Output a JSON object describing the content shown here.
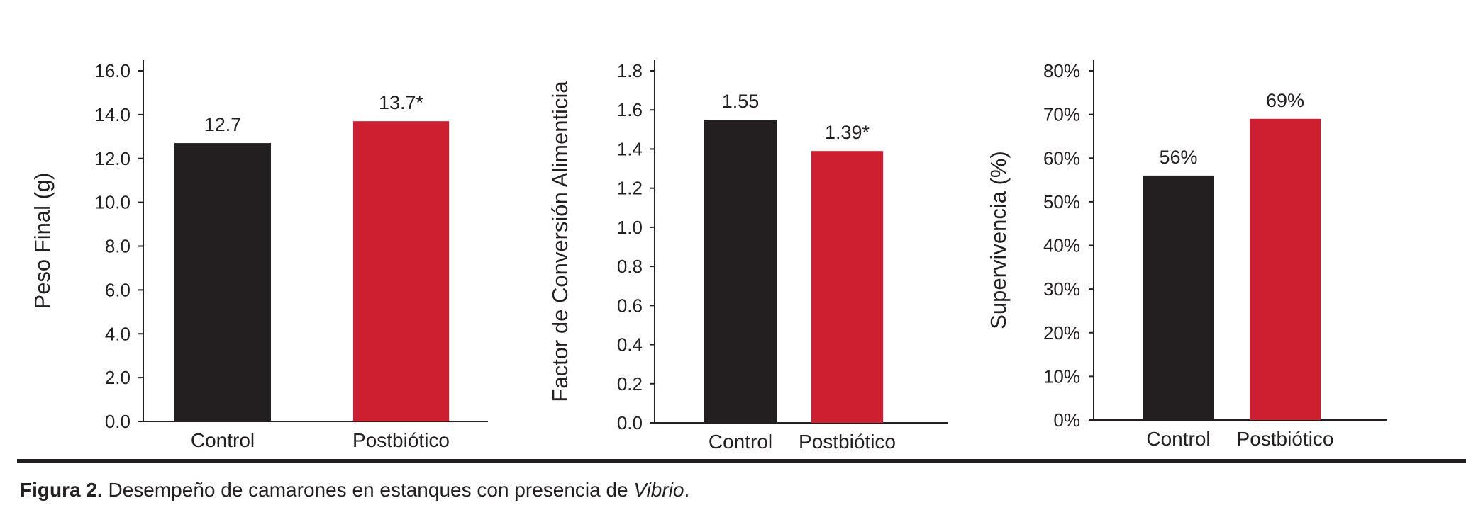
{
  "colors": {
    "control": "#231f20",
    "postbiotico": "#cc1f30",
    "axis": "#231f20"
  },
  "chart_data": [
    {
      "type": "bar",
      "categories": [
        "Control",
        "Postbiótico"
      ],
      "values": [
        12.7,
        13.7
      ],
      "data_labels": [
        "12.7",
        "13.7*"
      ],
      "ylabel": "Peso Final (g)",
      "ylim": [
        0,
        16
      ],
      "yticks": [
        0,
        2,
        4,
        6,
        8,
        10,
        12,
        14,
        16
      ],
      "ytick_labels": [
        "0.0",
        "2.0",
        "4.0",
        "6.0",
        "8.0",
        "10.0",
        "12.0",
        "14.0",
        "16.0"
      ],
      "grid": false
    },
    {
      "type": "bar",
      "categories": [
        "Control",
        "Postbiótico"
      ],
      "values": [
        1.55,
        1.39
      ],
      "data_labels": [
        "1.55",
        "1.39*"
      ],
      "ylabel": "Factor de Conversión Alimenticia",
      "ylim": [
        0,
        1.8
      ],
      "yticks": [
        0,
        0.2,
        0.4,
        0.6,
        0.8,
        1.0,
        1.2,
        1.4,
        1.6,
        1.8
      ],
      "ytick_labels": [
        "0.0",
        "0.2",
        "0.4",
        "0.6",
        "0.8",
        "1.0",
        "1.2",
        "1.4",
        "1.6",
        "1.8"
      ],
      "grid": false
    },
    {
      "type": "bar",
      "categories": [
        "Control",
        "Postbiótico"
      ],
      "values": [
        56,
        69
      ],
      "data_labels": [
        "56%",
        "69%"
      ],
      "ylabel": "Supervivencia (%)",
      "ylim": [
        0,
        80
      ],
      "yticks": [
        0,
        10,
        20,
        30,
        40,
        50,
        60,
        70,
        80
      ],
      "ytick_labels": [
        "0%",
        "10%",
        "20%",
        "30%",
        "40%",
        "50%",
        "60%",
        "70%",
        "80%"
      ],
      "grid": false
    }
  ],
  "caption": {
    "label": "Figura 2.",
    "text": " Desempeño de camarones en estanques con presencia de ",
    "italic": "Vibrio",
    "end": "."
  }
}
